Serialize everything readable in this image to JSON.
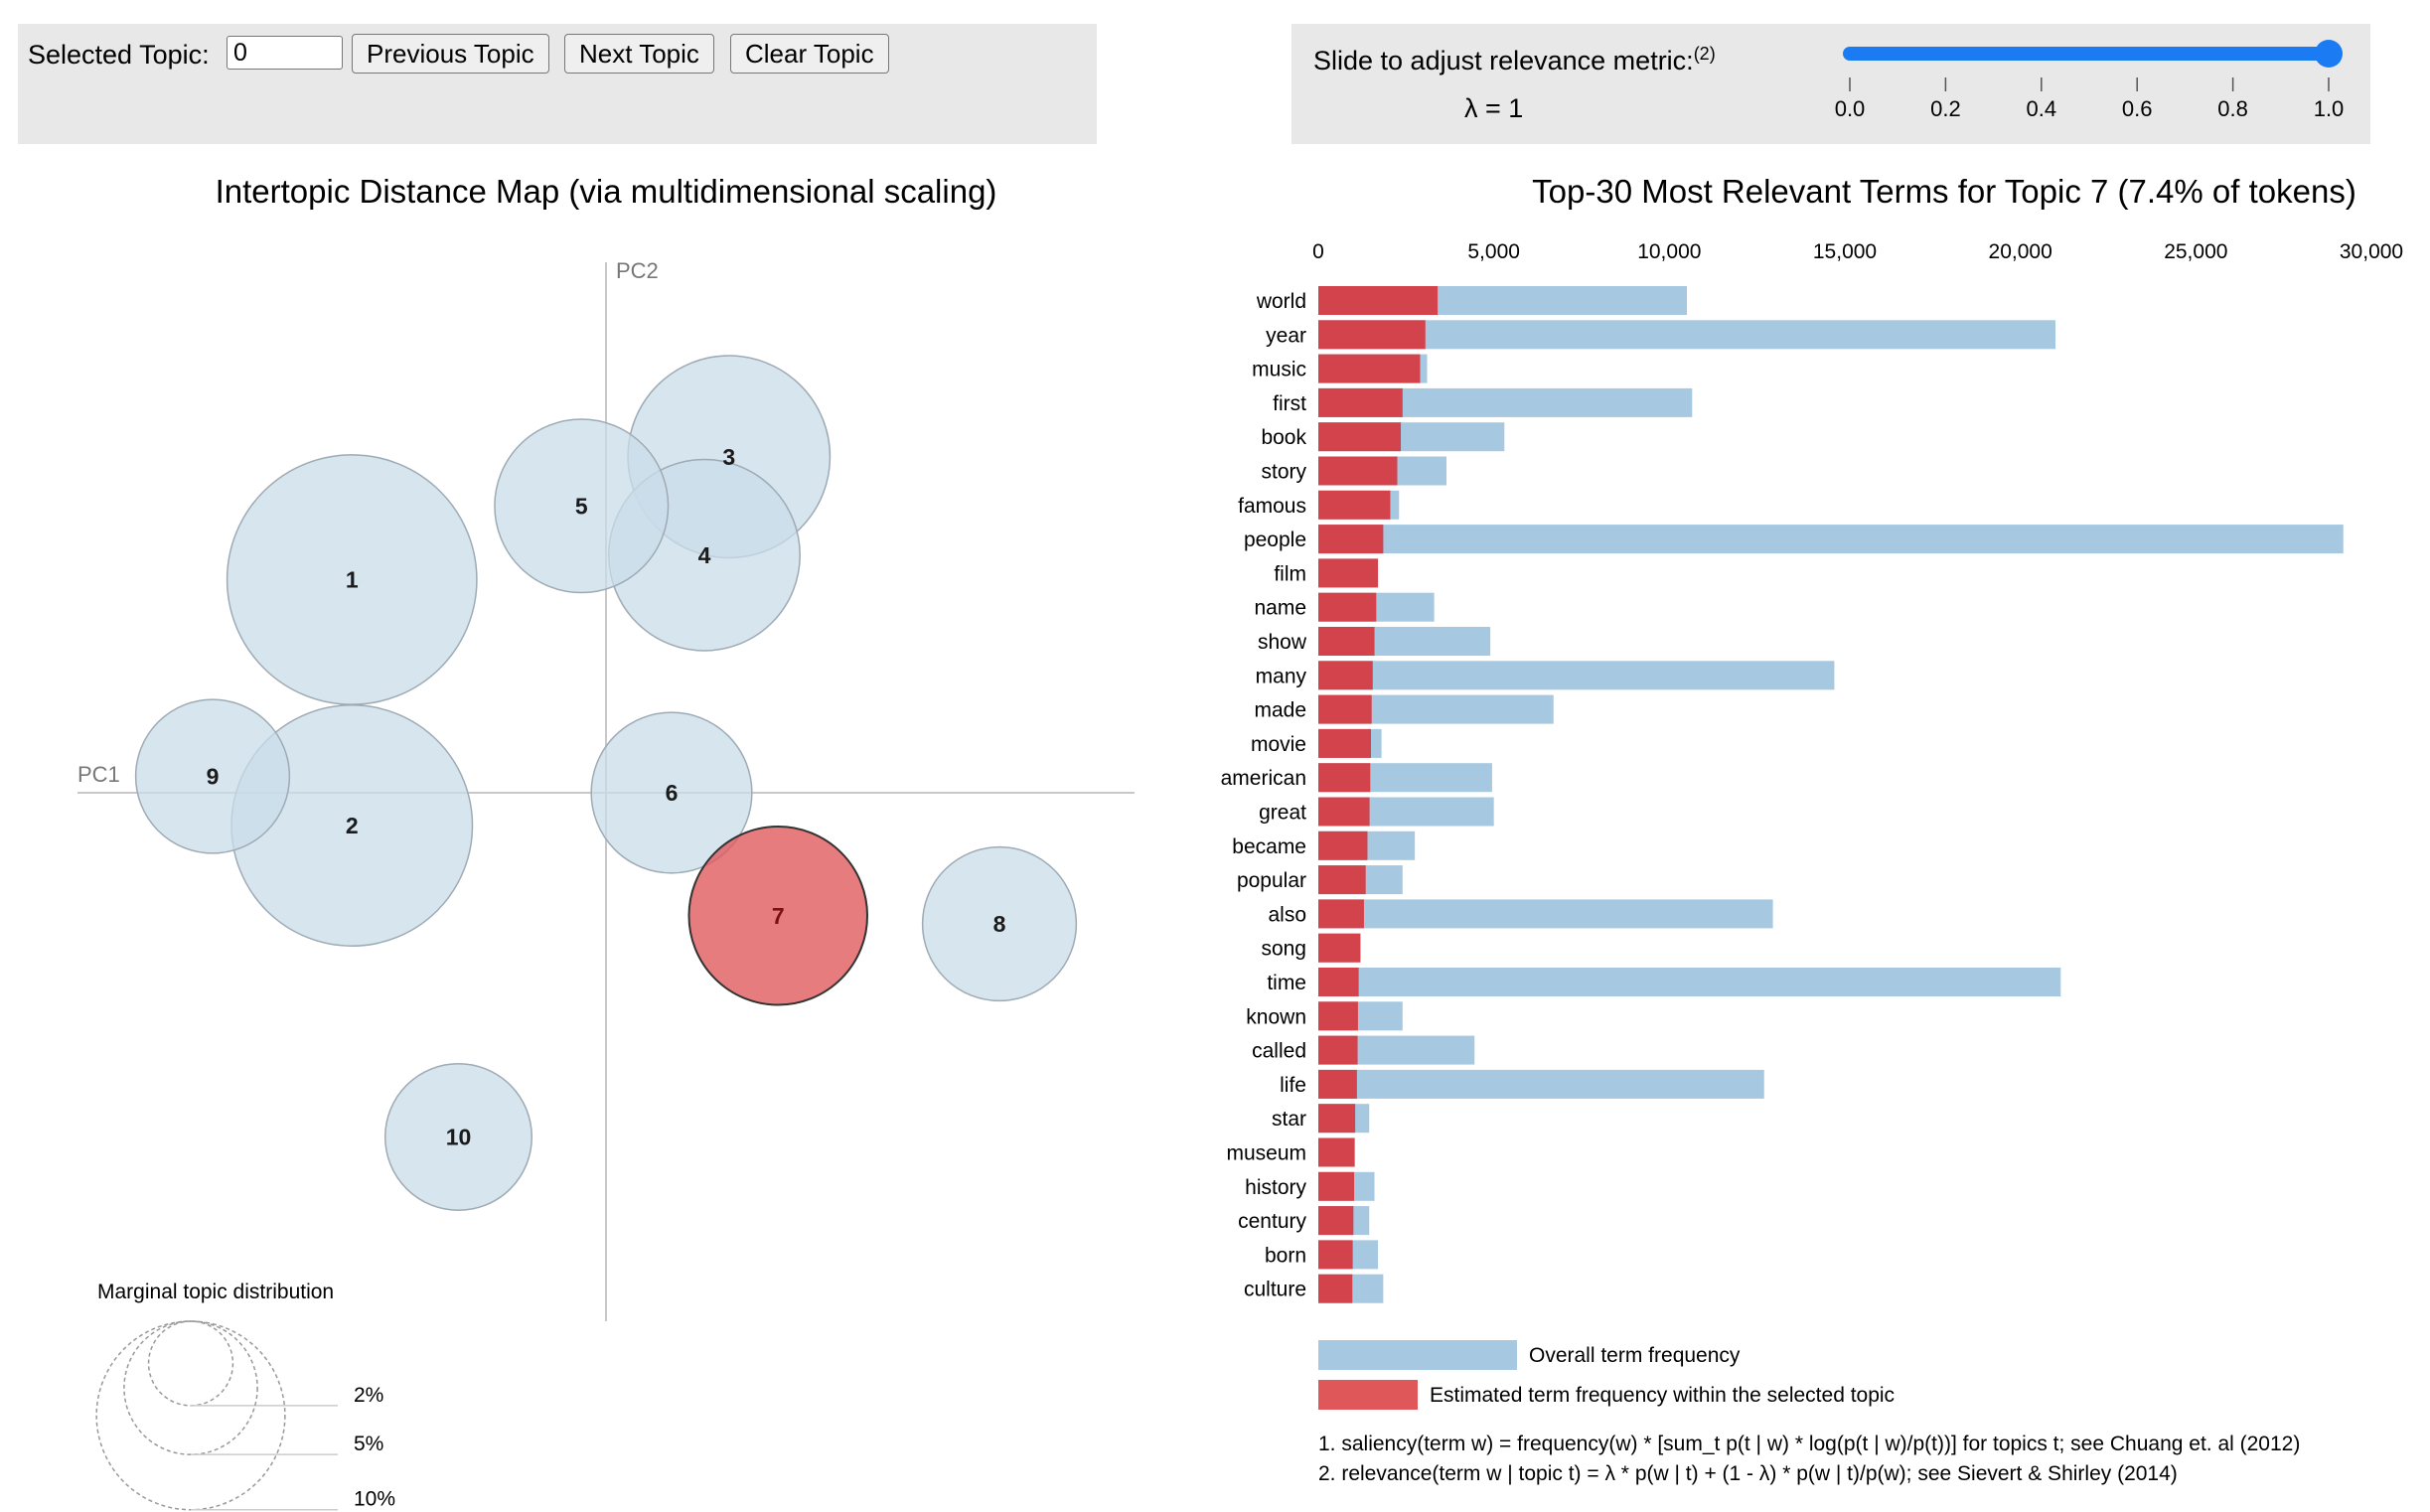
{
  "controls": {
    "selected_topic_label": "Selected Topic:",
    "selected_topic_value": "0",
    "prev_label": "Previous Topic",
    "next_label": "Next Topic",
    "clear_label": "Clear Topic",
    "slider_label": "Slide to adjust relevance metric:",
    "slider_footnote": "(2)",
    "lambda_text": "λ = 1",
    "lambda_value": 1,
    "slider_ticks": [
      "0.0",
      "0.2",
      "0.4",
      "0.6",
      "0.8",
      "1.0"
    ]
  },
  "chart_data": [
    {
      "type": "scatter",
      "title": "Intertopic Distance Map (via multidimensional scaling)",
      "xlabel": "PC1",
      "ylabel": "PC2",
      "selected_topic": "7",
      "topics": [
        {
          "label": "1",
          "pc1": -0.31,
          "pc2": 0.26,
          "size_pct": 14.5
        },
        {
          "label": "2",
          "pc1": -0.31,
          "pc2": -0.04,
          "size_pct": 13.5
        },
        {
          "label": "3",
          "pc1": 0.15,
          "pc2": 0.41,
          "size_pct": 9.5
        },
        {
          "label": "4",
          "pc1": 0.12,
          "pc2": 0.29,
          "size_pct": 8.5
        },
        {
          "label": "5",
          "pc1": -0.03,
          "pc2": 0.35,
          "size_pct": 7.0
        },
        {
          "label": "6",
          "pc1": 0.08,
          "pc2": 0.0,
          "size_pct": 6.0
        },
        {
          "label": "7",
          "pc1": 0.21,
          "pc2": -0.15,
          "size_pct": 7.4
        },
        {
          "label": "8",
          "pc1": 0.48,
          "pc2": -0.16,
          "size_pct": 5.5
        },
        {
          "label": "9",
          "pc1": -0.48,
          "pc2": 0.02,
          "size_pct": 5.5
        },
        {
          "label": "10",
          "pc1": -0.18,
          "pc2": -0.42,
          "size_pct": 5.0
        }
      ],
      "marginal_legend": {
        "title": "Marginal topic distribution",
        "levels": [
          "2%",
          "5%",
          "10%"
        ]
      }
    },
    {
      "type": "bar",
      "orientation": "horizontal",
      "title": "Top-30 Most Relevant Terms for Topic 7 (7.4% of tokens)",
      "x_ticks": [
        "0",
        "5,000",
        "10,000",
        "15,000",
        "20,000",
        "25,000",
        "30,000"
      ],
      "xlim": [
        0,
        30000
      ],
      "categories": [
        "world",
        "year",
        "music",
        "first",
        "book",
        "story",
        "famous",
        "people",
        "film",
        "name",
        "show",
        "many",
        "made",
        "movie",
        "american",
        "great",
        "became",
        "popular",
        "also",
        "song",
        "time",
        "known",
        "called",
        "life",
        "star",
        "museum",
        "history",
        "century",
        "born",
        "culture"
      ],
      "series": [
        {
          "name": "Overall term frequency",
          "values": [
            10500,
            21000,
            3100,
            10650,
            5300,
            3650,
            2300,
            29200,
            1650,
            3300,
            4900,
            14700,
            6700,
            1800,
            4950,
            5000,
            2750,
            2400,
            12950,
            1200,
            21150,
            2400,
            4450,
            12700,
            1450,
            1050,
            1600,
            1450,
            1700,
            1850
          ]
        },
        {
          "name": "Estimated term frequency within the selected topic",
          "values": [
            3400,
            3050,
            2900,
            2400,
            2350,
            2250,
            2050,
            1850,
            1700,
            1650,
            1600,
            1550,
            1520,
            1500,
            1480,
            1460,
            1400,
            1350,
            1300,
            1200,
            1150,
            1130,
            1120,
            1100,
            1050,
            1030,
            1020,
            1000,
            980,
            970
          ]
        }
      ],
      "legend": {
        "overall": "Overall term frequency",
        "estimated": "Estimated term frequency within the selected topic"
      },
      "notes": [
        "1. saliency(term w) = frequency(w) * [sum_t p(t | w) * log(p(t | w)/p(t))] for topics t; see Chuang et. al (2012)",
        "2. relevance(term w | topic t) = λ * p(w | t) + (1 - λ) * p(w | t)/p(w); see Sievert & Shirley (2014)"
      ]
    }
  ],
  "colors": {
    "bubble_fill": "#c9dcea",
    "bubble_stroke": "#9eaab4",
    "selected_fill": "#e0575a",
    "bar_overall": "#a6c8e0",
    "bar_topic": "#d3434b",
    "slider_blue": "#1a7bf2",
    "axis_gray": "#c8c8c8"
  }
}
